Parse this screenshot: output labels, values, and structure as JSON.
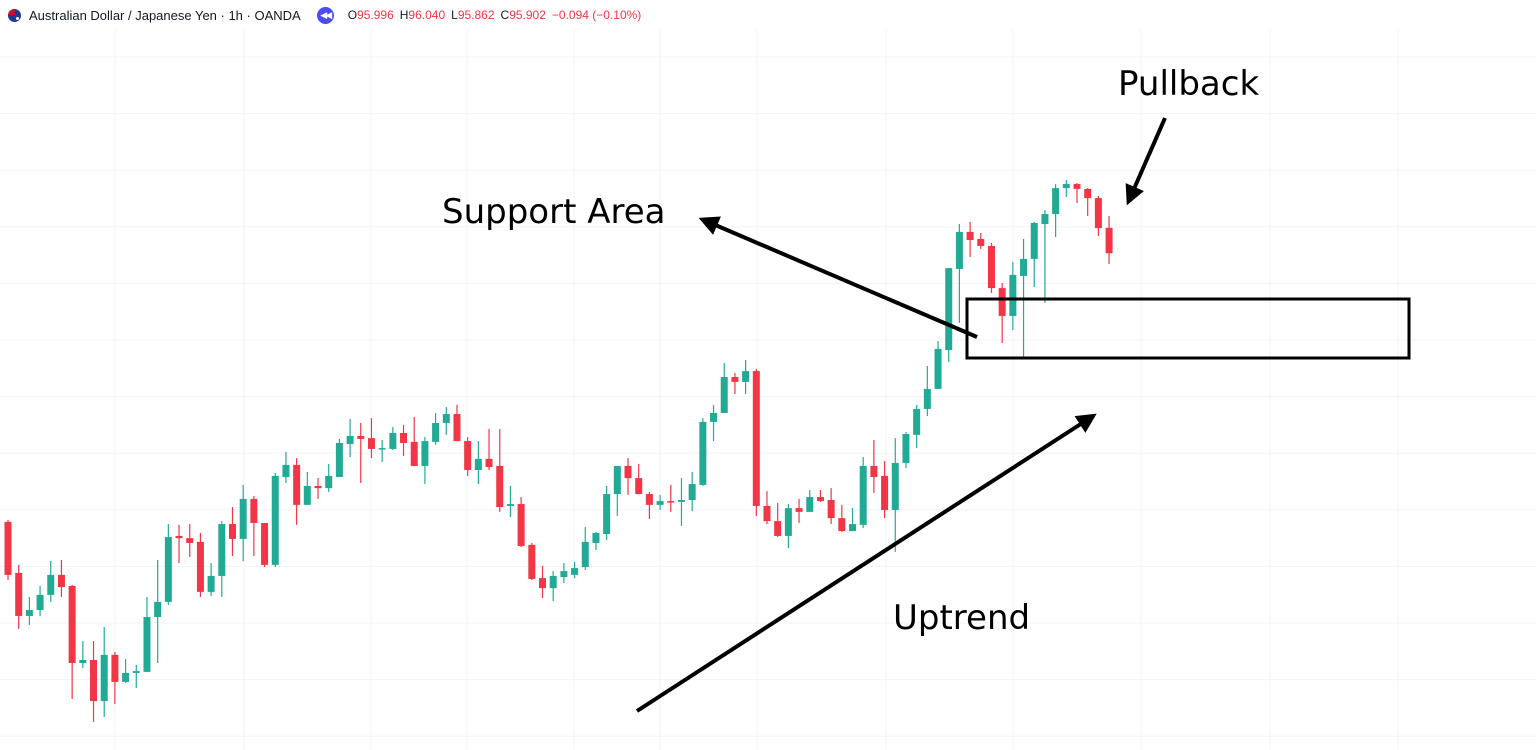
{
  "header": {
    "symbol_title": "Australian Dollar / Japanese Yen · 1h · OANDA",
    "flag_icon": "australia-flag-icon",
    "replay_icon": "rewind-icon",
    "ohlc": {
      "o_label": "O",
      "o_value": "95.996",
      "h_label": "H",
      "h_value": "96.040",
      "l_label": "L",
      "l_value": "95.862",
      "c_label": "C",
      "c_value": "95.902",
      "change": "−0.094 (−0.10%)"
    }
  },
  "colors": {
    "up": "#22ab94",
    "down": "#f23645",
    "grid": "#f0f3fa",
    "annotation": "#000000",
    "replay": "#4c4cf0"
  },
  "annotations": {
    "pullback": "Pullback",
    "support_area": "Support Area",
    "uptrend": "Uptrend"
  },
  "chart_data": {
    "type": "candlestick",
    "title": "Australian Dollar / Japanese Yen · 1h · OANDA",
    "interval": "1h",
    "grid": true,
    "ohlc_fields": [
      "open",
      "high",
      "low",
      "close"
    ],
    "candles": [
      [
        94.908,
        94.915,
        94.693,
        94.712
      ],
      [
        94.719,
        94.749,
        94.512,
        94.56
      ],
      [
        94.56,
        94.63,
        94.527,
        94.582
      ],
      [
        94.582,
        94.671,
        94.56,
        94.638
      ],
      [
        94.638,
        94.763,
        94.612,
        94.712
      ],
      [
        94.712,
        94.767,
        94.63,
        94.667
      ],
      [
        94.671,
        94.675,
        94.253,
        94.386
      ],
      [
        94.386,
        94.467,
        94.367,
        94.397
      ],
      [
        94.397,
        94.467,
        94.168,
        94.245
      ],
      [
        94.245,
        94.519,
        94.186,
        94.416
      ],
      [
        94.416,
        94.427,
        94.234,
        94.316
      ],
      [
        94.316,
        94.401,
        94.312,
        94.349
      ],
      [
        94.349,
        94.379,
        94.293,
        94.356
      ],
      [
        94.353,
        94.63,
        94.353,
        94.556
      ],
      [
        94.556,
        94.767,
        94.386,
        94.612
      ],
      [
        94.612,
        94.9,
        94.601,
        94.852
      ],
      [
        94.856,
        94.897,
        94.756,
        94.848
      ],
      [
        94.848,
        94.9,
        94.778,
        94.83
      ],
      [
        94.834,
        94.867,
        94.63,
        94.649
      ],
      [
        94.649,
        94.756,
        94.634,
        94.708
      ],
      [
        94.708,
        94.911,
        94.63,
        94.9
      ],
      [
        94.9,
        94.963,
        94.782,
        94.845
      ],
      [
        94.845,
        95.045,
        94.763,
        94.993
      ],
      [
        94.993,
        95.004,
        94.782,
        94.904
      ],
      [
        94.904,
        94.904,
        94.741,
        94.749
      ],
      [
        94.749,
        95.089,
        94.741,
        95.078
      ],
      [
        95.074,
        95.167,
        95.052,
        95.119
      ],
      [
        95.119,
        95.144,
        94.897,
        94.971
      ],
      [
        94.971,
        95.093,
        94.971,
        95.041
      ],
      [
        95.041,
        95.07,
        94.993,
        95.033
      ],
      [
        95.033,
        95.122,
        95.019,
        95.078
      ],
      [
        95.074,
        95.215,
        95.074,
        95.2
      ],
      [
        95.196,
        95.289,
        95.148,
        95.226
      ],
      [
        95.226,
        95.274,
        95.052,
        95.215
      ],
      [
        95.218,
        95.292,
        95.144,
        95.178
      ],
      [
        95.178,
        95.211,
        95.13,
        95.181
      ],
      [
        95.178,
        95.259,
        95.174,
        95.237
      ],
      [
        95.237,
        95.267,
        95.152,
        95.2
      ],
      [
        95.204,
        95.296,
        95.115,
        95.115
      ],
      [
        95.115,
        95.222,
        95.048,
        95.207
      ],
      [
        95.204,
        95.311,
        95.193,
        95.274
      ],
      [
        95.274,
        95.333,
        95.23,
        95.307
      ],
      [
        95.307,
        95.341,
        95.207,
        95.207
      ],
      [
        95.207,
        95.222,
        95.078,
        95.1
      ],
      [
        95.1,
        95.207,
        95.048,
        95.141
      ],
      [
        95.141,
        95.252,
        95.1,
        95.111
      ],
      [
        95.115,
        95.252,
        94.945,
        94.963
      ],
      [
        94.967,
        95.041,
        94.926,
        94.974
      ],
      [
        94.974,
        95.0,
        94.815,
        94.819
      ],
      [
        94.823,
        94.83,
        94.693,
        94.697
      ],
      [
        94.7,
        94.745,
        94.626,
        94.663
      ],
      [
        94.663,
        94.726,
        94.615,
        94.708
      ],
      [
        94.704,
        94.756,
        94.682,
        94.726
      ],
      [
        94.712,
        94.76,
        94.7,
        94.737
      ],
      [
        94.741,
        94.889,
        94.73,
        94.834
      ],
      [
        94.83,
        94.871,
        94.804,
        94.867
      ],
      [
        94.863,
        95.041,
        94.841,
        95.011
      ],
      [
        95.011,
        95.115,
        94.93,
        95.115
      ],
      [
        95.115,
        95.144,
        95.008,
        95.07
      ],
      [
        95.07,
        95.122,
        95.011,
        95.011
      ],
      [
        95.011,
        95.019,
        94.919,
        94.971
      ],
      [
        94.971,
        95.008,
        94.952,
        94.985
      ],
      [
        94.985,
        95.045,
        94.945,
        94.982
      ],
      [
        94.982,
        95.07,
        94.893,
        94.989
      ],
      [
        94.989,
        95.093,
        94.948,
        95.048
      ],
      [
        95.045,
        95.292,
        95.041,
        95.278
      ],
      [
        95.278,
        95.341,
        95.207,
        95.311
      ],
      [
        95.311,
        95.496,
        95.311,
        95.444
      ],
      [
        95.444,
        95.459,
        95.381,
        95.426
      ],
      [
        95.426,
        95.507,
        95.381,
        95.466
      ],
      [
        95.466,
        95.474,
        94.93,
        94.967
      ],
      [
        94.967,
        95.022,
        94.9,
        94.911
      ],
      [
        94.911,
        94.978,
        94.852,
        94.856
      ],
      [
        94.856,
        94.974,
        94.811,
        94.959
      ],
      [
        94.959,
        94.993,
        94.904,
        94.945
      ],
      [
        94.945,
        95.026,
        94.945,
        95.0
      ],
      [
        95.0,
        95.026,
        94.982,
        94.985
      ],
      [
        94.989,
        95.033,
        94.9,
        94.922
      ],
      [
        94.922,
        94.971,
        94.871,
        94.874
      ],
      [
        94.874,
        94.959,
        94.874,
        94.9
      ],
      [
        94.897,
        95.148,
        94.885,
        95.115
      ],
      [
        95.115,
        95.211,
        95.015,
        95.074
      ],
      [
        95.078,
        95.133,
        94.922,
        94.952
      ],
      [
        94.952,
        95.218,
        94.797,
        95.126
      ],
      [
        95.126,
        95.241,
        95.107,
        95.233
      ],
      [
        95.23,
        95.341,
        95.181,
        95.326
      ],
      [
        95.326,
        95.485,
        95.3,
        95.4
      ],
      [
        95.4,
        95.577,
        95.4,
        95.548
      ],
      [
        95.544,
        95.847,
        95.5,
        95.847
      ],
      [
        95.844,
        96.01,
        95.644,
        95.981
      ],
      [
        95.981,
        96.018,
        95.888,
        95.951
      ],
      [
        95.955,
        95.977,
        95.918,
        95.929
      ],
      [
        95.929,
        95.94,
        95.755,
        95.773
      ],
      [
        95.773,
        95.792,
        95.57,
        95.67
      ],
      [
        95.67,
        95.87,
        95.618,
        95.822
      ],
      [
        95.818,
        95.955,
        95.518,
        95.881
      ],
      [
        95.881,
        96.018,
        95.777,
        96.014
      ],
      [
        96.01,
        96.062,
        95.718,
        96.047
      ],
      [
        96.047,
        96.158,
        95.962,
        96.143
      ],
      [
        96.143,
        96.173,
        96.11,
        96.158
      ],
      [
        96.158,
        96.162,
        96.088,
        96.14
      ],
      [
        96.14,
        96.143,
        96.04,
        96.106
      ],
      [
        96.106,
        96.114,
        95.966,
        95.995
      ],
      [
        95.996,
        96.04,
        95.862,
        95.902
      ]
    ],
    "support_zone": {
      "from_candle": 90,
      "price_high": 95.738,
      "price_low": 95.516
    },
    "annotations": [
      "Support Area",
      "Pullback",
      "Uptrend"
    ]
  }
}
